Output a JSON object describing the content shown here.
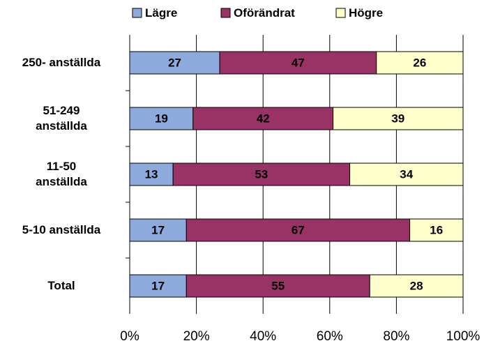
{
  "chart_data": {
    "type": "stacked_barh",
    "categories": [
      "250- anställda",
      "51-249\nanställda",
      "11-50\nanställda",
      "5-10 anställda",
      "Total"
    ],
    "series": [
      {
        "name": "Lägre",
        "color": "#8eaadc",
        "values": [
          27,
          19,
          13,
          17,
          17
        ]
      },
      {
        "name": "Oförändrat",
        "color": "#993366",
        "values": [
          47,
          42,
          53,
          67,
          55
        ]
      },
      {
        "name": "Högre",
        "color": "#ffffcc",
        "values": [
          26,
          39,
          34,
          16,
          28
        ]
      }
    ],
    "xlim": [
      0,
      100
    ],
    "xticks": [
      {
        "value": 0,
        "label": "0%"
      },
      {
        "value": 20,
        "label": "20%"
      },
      {
        "value": 40,
        "label": "40%"
      },
      {
        "value": 60,
        "label": "60%"
      },
      {
        "value": 80,
        "label": "80%"
      },
      {
        "value": 100,
        "label": "100%"
      }
    ],
    "grid": true,
    "legend": "top"
  }
}
